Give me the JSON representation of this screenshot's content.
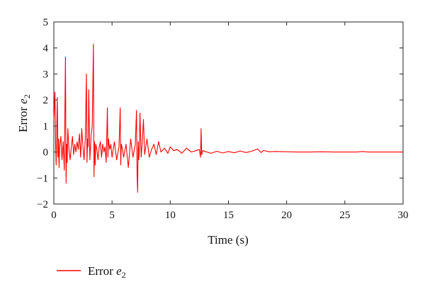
{
  "chart_data": {
    "type": "line",
    "xlabel": "Time (s)",
    "ylabel": {
      "text": "Error ",
      "var": "e",
      "sub": "2"
    },
    "xlim": [
      0,
      30
    ],
    "ylim": [
      -2,
      5
    ],
    "xticks": [
      0,
      5,
      10,
      15,
      20,
      25,
      30
    ],
    "yticks": [
      -2,
      -1,
      0,
      1,
      2,
      3,
      4,
      5
    ],
    "xtick_labels": [
      "0",
      "5",
      "10",
      "15",
      "20",
      "25",
      "30"
    ],
    "ytick_labels": [
      "−2",
      "−1",
      "0",
      "1",
      "2",
      "3",
      "4",
      "5"
    ],
    "grid": false,
    "legend_position": "below",
    "series": [
      {
        "name": {
          "text": "Error ",
          "var": "e",
          "sub": "2"
        },
        "color": "#ff0000",
        "x": [
          0,
          0.1,
          0.15,
          0.2,
          0.3,
          0.35,
          0.4,
          0.45,
          0.5,
          0.6,
          0.7,
          0.8,
          0.9,
          1.0,
          1.05,
          1.1,
          1.15,
          1.2,
          1.3,
          1.4,
          1.5,
          1.6,
          1.7,
          1.8,
          1.9,
          2.0,
          2.1,
          2.2,
          2.3,
          2.4,
          2.5,
          2.6,
          2.7,
          2.8,
          2.85,
          2.9,
          2.95,
          3.0,
          3.1,
          3.2,
          3.3,
          3.4,
          3.45,
          3.5,
          3.55,
          3.6,
          3.7,
          3.8,
          3.9,
          4.0,
          4.1,
          4.2,
          4.3,
          4.4,
          4.5,
          4.6,
          4.65,
          4.7,
          4.8,
          4.9,
          5.0,
          5.2,
          5.4,
          5.6,
          5.7,
          5.75,
          5.8,
          5.9,
          6.0,
          6.2,
          6.4,
          6.6,
          6.8,
          7.0,
          7.1,
          7.15,
          7.2,
          7.25,
          7.3,
          7.35,
          7.4,
          7.5,
          7.6,
          7.7,
          7.8,
          7.9,
          8.0,
          8.2,
          8.4,
          8.6,
          8.8,
          9.0,
          9.2,
          9.5,
          9.8,
          10.0,
          10.3,
          10.6,
          11.0,
          11.4,
          11.8,
          12.2,
          12.5,
          12.6,
          12.65,
          12.7,
          12.8,
          13.0,
          13.5,
          14.0,
          14.5,
          15.0,
          15.5,
          16.0,
          16.5,
          17.0,
          17.5,
          17.8,
          18.0,
          18.5,
          19.0,
          20.0,
          21.0,
          22.0,
          23.0,
          24.0,
          25.0,
          26.0,
          26.5,
          27.0,
          28.0,
          29.0,
          30.0
        ],
        "y": [
          1.2,
          2.3,
          0.3,
          -0.5,
          2.1,
          -0.2,
          0.5,
          -0.6,
          0.2,
          0.6,
          -0.3,
          0.4,
          -0.7,
          3.65,
          -1.2,
          0.3,
          -0.4,
          0.9,
          0.1,
          -0.3,
          0.2,
          0.6,
          -0.1,
          0.3,
          0.0,
          0.4,
          0.1,
          0.7,
          -0.2,
          0.9,
          0.2,
          -0.3,
          0.5,
          3.0,
          -0.4,
          0.5,
          0.2,
          2.4,
          -0.3,
          0.6,
          1.0,
          4.15,
          -0.95,
          0.4,
          -0.5,
          0.3,
          0.1,
          -0.3,
          0.2,
          0.4,
          -0.2,
          0.3,
          0.0,
          0.2,
          -0.4,
          1.7,
          -0.2,
          0.5,
          0.1,
          0.3,
          -0.2,
          0.4,
          -0.3,
          0.2,
          1.7,
          -0.5,
          0.3,
          0.1,
          -0.2,
          0.3,
          -0.6,
          0.5,
          -0.2,
          0.3,
          1.6,
          -0.8,
          -1.55,
          0.4,
          -0.3,
          0.2,
          1.5,
          -0.2,
          0.4,
          1.25,
          -0.1,
          0.2,
          0.5,
          -0.2,
          0.1,
          0.3,
          -0.1,
          0.4,
          0.0,
          0.15,
          -0.05,
          0.2,
          0.05,
          0.1,
          -0.05,
          0.15,
          0.0,
          0.05,
          0.1,
          -0.2,
          0.9,
          -0.1,
          0.05,
          0.02,
          -0.05,
          0.03,
          -0.04,
          0.02,
          -0.03,
          0.04,
          -0.02,
          0.03,
          0.12,
          -0.02,
          0.06,
          0.01,
          0.02,
          0.01,
          0.0,
          0.0,
          0.01,
          0.0,
          0.0,
          0.0,
          0.02,
          0.0,
          0.0,
          0.0,
          0.0
        ]
      }
    ]
  }
}
